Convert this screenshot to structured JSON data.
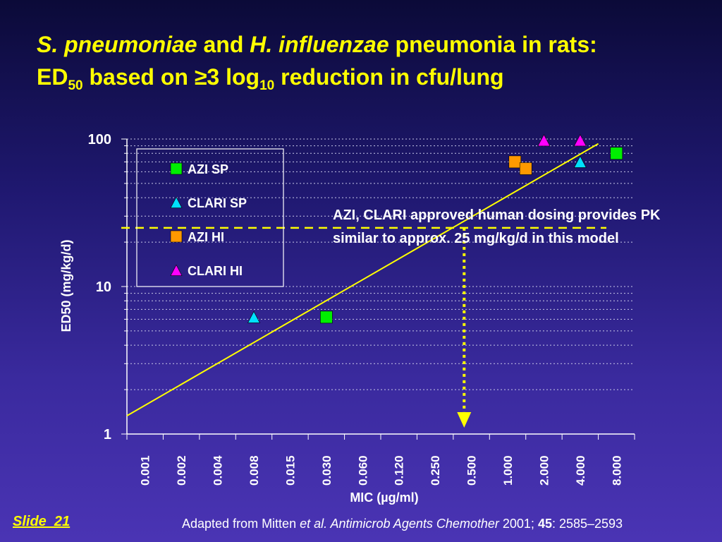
{
  "title": {
    "line1_part1": "S. pneumoniae",
    "line1_part2": " and ",
    "line1_part3": "H. influenzae",
    "line1_part4": " pneumonia in rats:",
    "line2_part1": "ED",
    "line2_sub1": "50",
    "line2_part2": " based on ",
    "line2_symbol": "≥",
    "line2_part3": "3 log",
    "line2_sub2": "10",
    "line2_part4": " reduction in cfu/lung"
  },
  "chart_data": {
    "type": "scatter",
    "xlabel": "MIC (µg/ml)",
    "ylabel": "ED50 (mg/kg/d)",
    "x_categories": [
      "0.001",
      "0.002",
      "0.004",
      "0.008",
      "0.015",
      "0.030",
      "0.060",
      "0.120",
      "0.250",
      "0.500",
      "1.000",
      "2.000",
      "4.000",
      "8.000"
    ],
    "y_scale": "log",
    "ylim": [
      1,
      100
    ],
    "y_ticks": [
      "1",
      "10",
      "100"
    ],
    "grid": true,
    "legend_position": "top-left",
    "series": [
      {
        "name": "AZI SP",
        "marker": "square",
        "color": "#00ee00",
        "points": [
          {
            "x": 5,
            "y": 6.2
          },
          {
            "x": 13,
            "y": 80
          }
        ]
      },
      {
        "name": "CLARI SP",
        "marker": "triangle",
        "color": "#00e0ff",
        "points": [
          {
            "x": 3,
            "y": 6.2
          },
          {
            "x": 12,
            "y": 70
          }
        ]
      },
      {
        "name": "AZI HI",
        "marker": "square",
        "color": "#ff9900",
        "points": [
          {
            "x": 10.2,
            "y": 70
          },
          {
            "x": 10.5,
            "y": 63
          }
        ]
      },
      {
        "name": "CLARI HI",
        "marker": "triangle",
        "color": "#ff00ff",
        "points": [
          {
            "x": 11,
            "y": 98
          },
          {
            "x": 12,
            "y": 98
          }
        ]
      }
    ],
    "regression_line": {
      "color": "#ffff00",
      "start": {
        "x": -0.5,
        "y": 1.33
      },
      "end": {
        "x": 12.5,
        "y": 93
      }
    },
    "reference_line": {
      "y": 25,
      "color": "#ffff00",
      "style": "dashed"
    },
    "reference_arrow": {
      "x": 8.8,
      "from_y": 25,
      "to_y": 1,
      "color": "#ffff00"
    },
    "annotation": {
      "line1": "AZI, CLARI approved human dosing provides PK",
      "line2": "similar to approx. 25 mg/kg/d in this model"
    }
  },
  "footer": {
    "slide": "Slide  21",
    "cite_pre": "Adapted from Mitten ",
    "cite_etal": "et al. Antimicrob Agents Chemother",
    "cite_year": " 2001; ",
    "cite_vol": "45",
    "cite_pages": ": 2585–2593"
  },
  "colors": {
    "title": "#ffff00",
    "axis": "#ffffff",
    "grid": "#c8c8e8"
  }
}
